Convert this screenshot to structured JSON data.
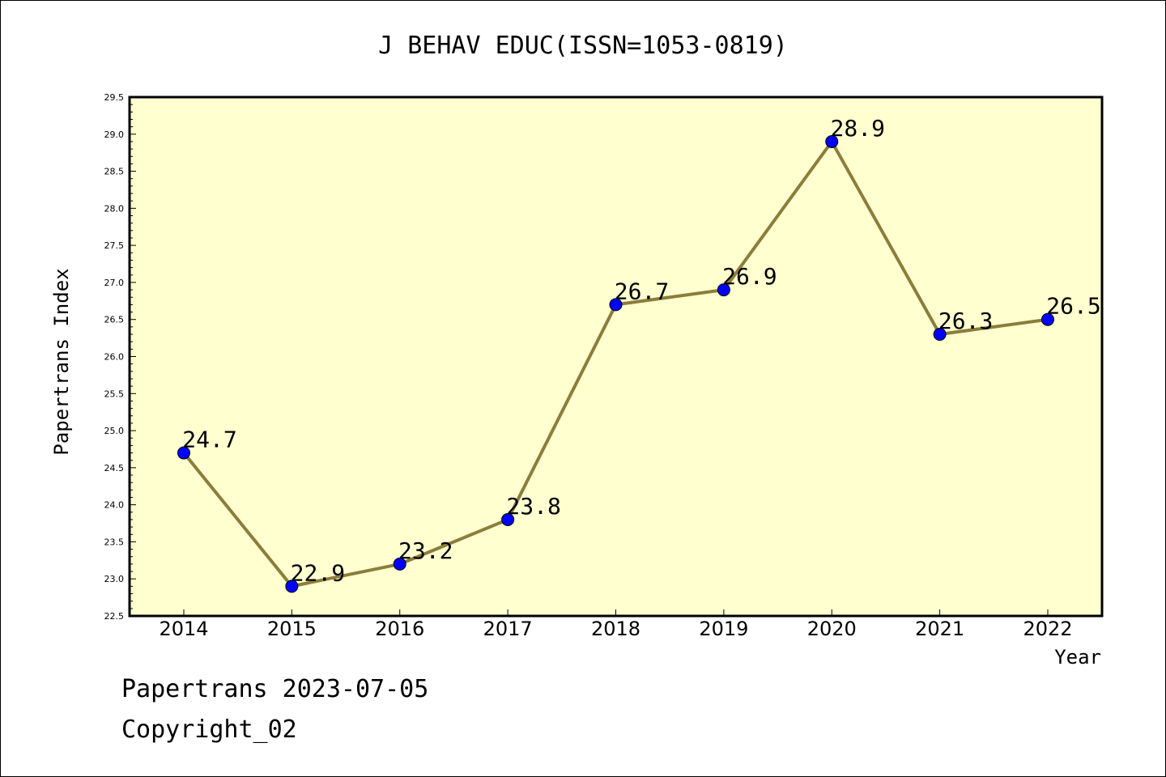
{
  "chart_data": {
    "type": "line",
    "title": "J BEHAV EDUC(ISSN=1053-0819)",
    "xlabel": "Year",
    "ylabel": "Papertrans Index",
    "x": [
      "2014",
      "2015",
      "2016",
      "2017",
      "2018",
      "2019",
      "2020",
      "2021",
      "2022"
    ],
    "series": [
      {
        "values": [
          24.7,
          22.9,
          23.2,
          23.8,
          26.7,
          26.9,
          28.9,
          26.3,
          26.5
        ]
      }
    ],
    "data_labels": [
      "24.7",
      "22.9",
      "23.2",
      "23.8",
      "26.7",
      "26.9",
      "28.9",
      "26.3",
      "26.5"
    ],
    "ylim": [
      22.5,
      29.5
    ],
    "yticks": [
      "22.5",
      "23.0",
      "23.5",
      "24.0",
      "24.5",
      "25.0",
      "25.5",
      "26.0",
      "26.5",
      "27.0",
      "27.5",
      "28.0",
      "28.5",
      "29.0",
      "29.5"
    ],
    "grid": false,
    "colors": {
      "plot_background": "#ffffd0",
      "line": "#8b7d3a",
      "marker": "#0000ff"
    }
  },
  "footer": {
    "date_line": "Papertrans 2023-07-05",
    "copyright": "Copyright_02"
  }
}
